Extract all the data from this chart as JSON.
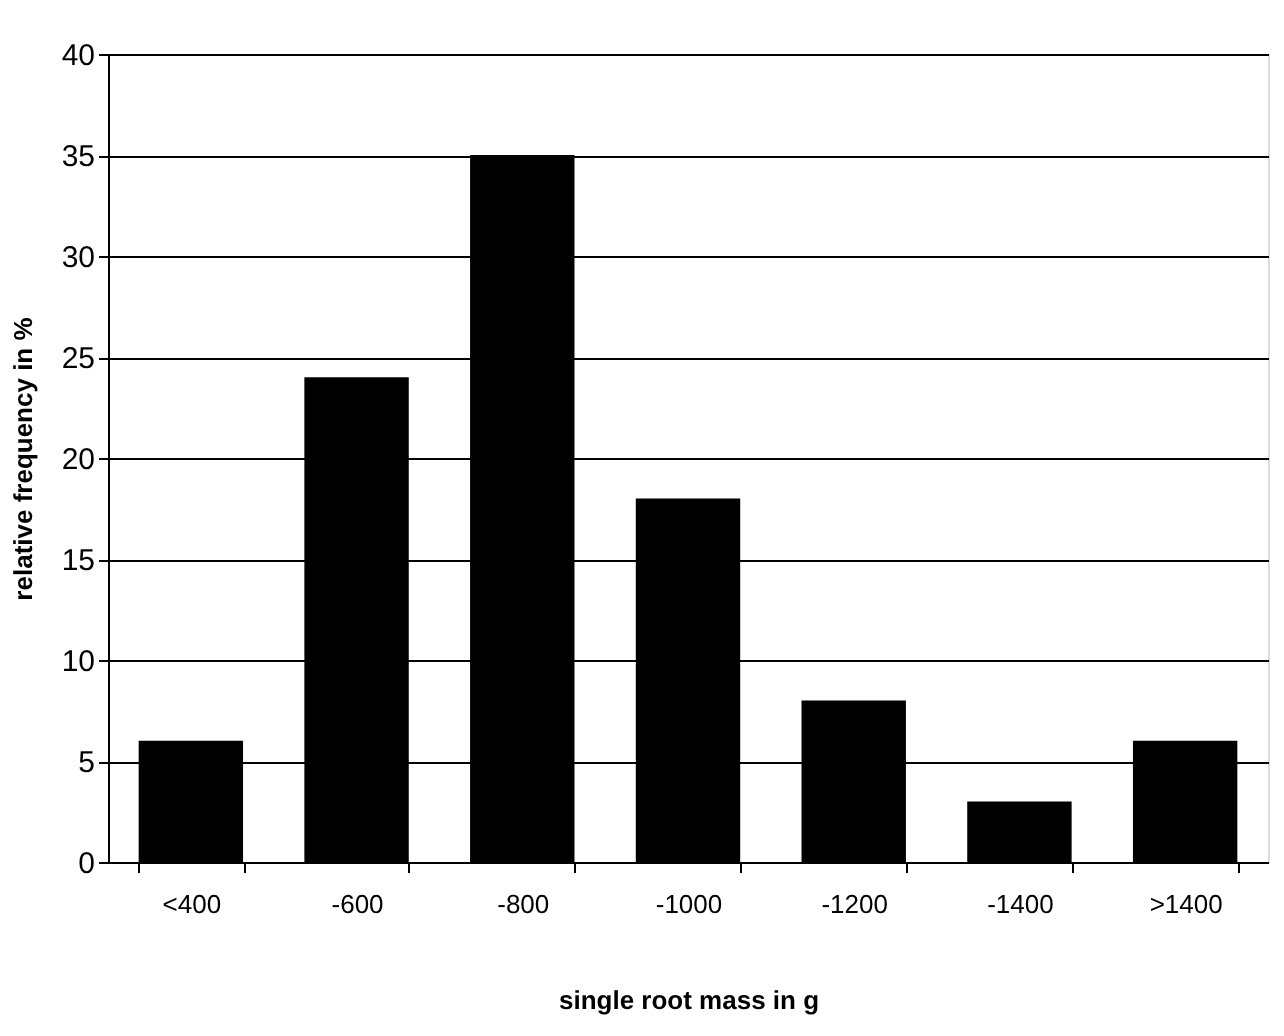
{
  "chart_data": {
    "type": "bar",
    "xlabel": "single root mass in g",
    "ylabel": "relative frequency in %",
    "categories": [
      "<400",
      "-600",
      "-800",
      "-1000",
      "-1200",
      "-1400",
      ">1400"
    ],
    "values": [
      6,
      24,
      35,
      18,
      8,
      3,
      6
    ],
    "color": "#000000",
    "ylim": [
      0,
      40
    ],
    "yticks": [
      0,
      5,
      10,
      15,
      20,
      25,
      30,
      35,
      40
    ],
    "grid": "y"
  }
}
